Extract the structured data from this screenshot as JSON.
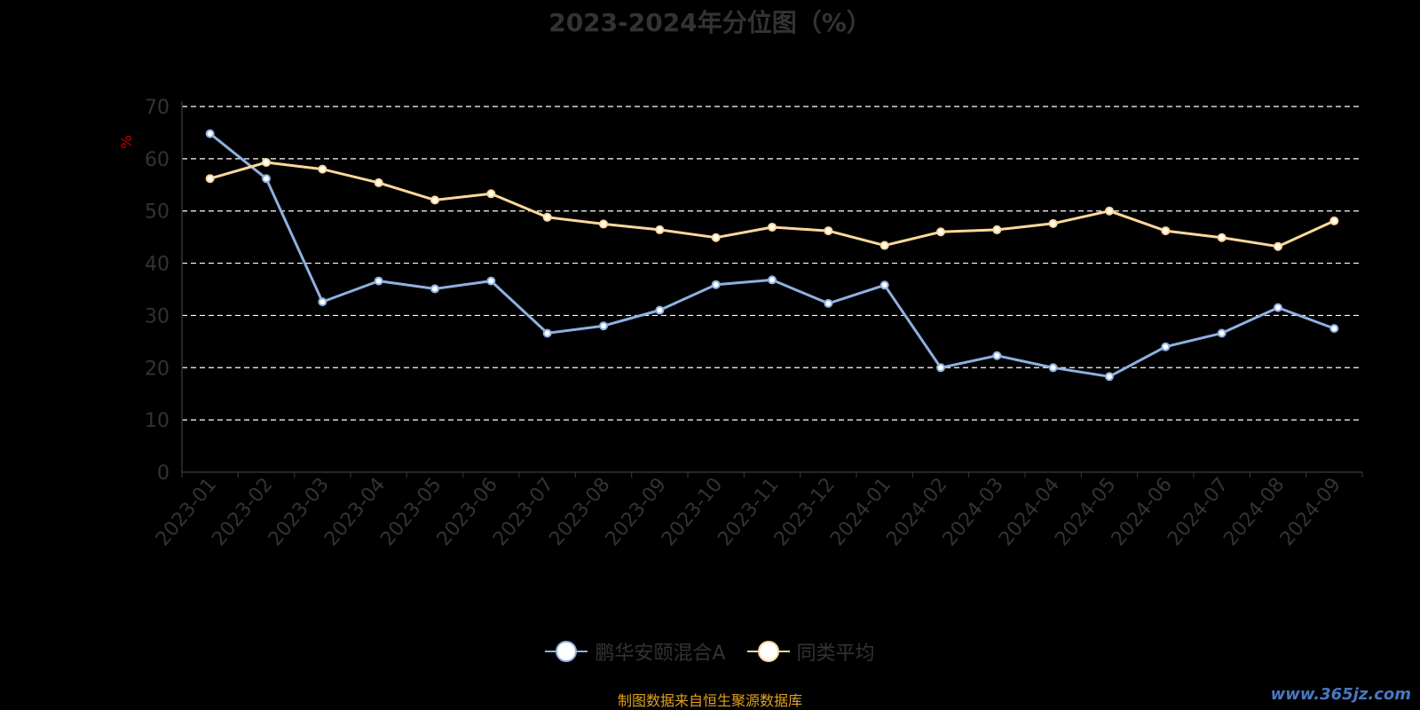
{
  "chart_data": {
    "type": "line",
    "title": "2023-2024年分位图（%）",
    "ylabel": "%",
    "xlabel": "",
    "ylim": [
      0,
      70
    ],
    "yticks": [
      0,
      10,
      20,
      30,
      40,
      50,
      60,
      70
    ],
    "grid": true,
    "legend_position": "bottom",
    "categories": [
      "2023-01",
      "2023-02",
      "2023-03",
      "2023-04",
      "2023-05",
      "2023-06",
      "2023-07",
      "2023-08",
      "2023-09",
      "2023-10",
      "2023-11",
      "2023-12",
      "2024-01",
      "2024-02",
      "2024-03",
      "2024-04",
      "2024-05",
      "2024-06",
      "2024-07",
      "2024-08",
      "2024-09"
    ],
    "series": [
      {
        "name": "鹏华安颐混合A",
        "color": "#8fb0e0",
        "values": [
          64.8,
          56.2,
          32.6,
          36.6,
          35.1,
          36.6,
          26.6,
          28.0,
          31.0,
          35.9,
          36.8,
          32.3,
          35.8,
          20.0,
          22.3,
          20.0,
          18.3,
          24.0,
          26.6,
          31.5,
          27.5
        ]
      },
      {
        "name": "同类平均",
        "color": "#ffd89a",
        "values": [
          56.2,
          59.3,
          58.0,
          55.4,
          52.1,
          53.3,
          48.8,
          47.5,
          46.4,
          44.9,
          46.9,
          46.2,
          43.4,
          46.0,
          46.4,
          47.6,
          50.0,
          46.2,
          44.9,
          43.2,
          48.1
        ]
      }
    ]
  },
  "source_note": "制图数据来自恒生聚源数据库",
  "watermark": "www.365jz.com",
  "colors": {
    "background": "#000000",
    "axis_text": "#333333",
    "grid": "#ffffff",
    "ylabel": "#cc0000"
  }
}
